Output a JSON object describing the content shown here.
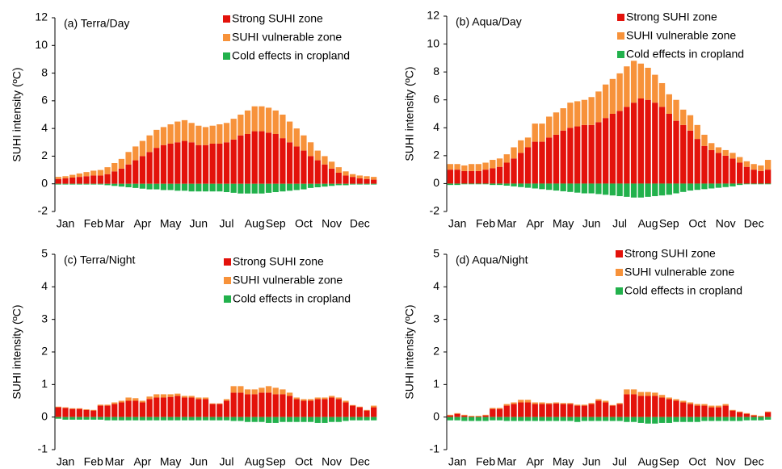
{
  "chart_data": [
    {
      "type": "bar",
      "stacked": true,
      "title": "(a) Terra/Day",
      "ylabel": "SUHI intensity (ºC)",
      "categories": [
        null,
        "Jan",
        null,
        null,
        null,
        "Feb",
        null,
        null,
        "Mar",
        null,
        null,
        null,
        "Apr",
        null,
        null,
        null,
        "May",
        null,
        null,
        null,
        "Jun",
        null,
        null,
        null,
        "Jul",
        null,
        null,
        null,
        "Aug",
        null,
        null,
        "Sep",
        null,
        null,
        null,
        "Oct",
        null,
        null,
        null,
        "Nov",
        null,
        null,
        null,
        "Dec",
        null,
        null
      ],
      "ylim": [
        -2,
        12
      ],
      "yticks": [
        -2,
        0,
        2,
        4,
        6,
        8,
        10,
        12
      ],
      "series": [
        {
          "name": "Strong SUHI zone",
          "color": "#e3120b",
          "values": [
            0.35,
            0.4,
            0.45,
            0.5,
            0.55,
            0.6,
            0.6,
            0.7,
            0.9,
            1.1,
            1.4,
            1.7,
            2.0,
            2.3,
            2.6,
            2.8,
            2.9,
            3.0,
            3.1,
            3.0,
            2.8,
            2.8,
            2.9,
            2.9,
            3.0,
            3.2,
            3.5,
            3.6,
            3.8,
            3.8,
            3.7,
            3.6,
            3.3,
            3.0,
            2.7,
            2.4,
            2.0,
            1.7,
            1.4,
            1.1,
            0.8,
            0.6,
            0.5,
            0.4,
            0.35,
            0.3
          ]
        },
        {
          "name": "SUHI vulnerable zone",
          "color": "#f7923a",
          "values": [
            0.15,
            0.15,
            0.2,
            0.25,
            0.3,
            0.35,
            0.4,
            0.5,
            0.6,
            0.7,
            0.9,
            1.0,
            1.1,
            1.2,
            1.3,
            1.3,
            1.4,
            1.5,
            1.5,
            1.4,
            1.4,
            1.3,
            1.3,
            1.4,
            1.4,
            1.5,
            1.5,
            1.7,
            1.8,
            1.8,
            1.8,
            1.7,
            1.7,
            1.5,
            1.3,
            1.1,
            1.0,
            0.7,
            0.6,
            0.5,
            0.4,
            0.3,
            0.2,
            0.2,
            0.2,
            0.2
          ]
        },
        {
          "name": "Cold effects in cropland",
          "color": "#22b14c",
          "values": [
            -0.05,
            -0.05,
            -0.05,
            -0.05,
            -0.05,
            -0.05,
            -0.05,
            -0.1,
            -0.15,
            -0.2,
            -0.25,
            -0.3,
            -0.35,
            -0.4,
            -0.4,
            -0.45,
            -0.45,
            -0.5,
            -0.5,
            -0.55,
            -0.55,
            -0.55,
            -0.55,
            -0.55,
            -0.6,
            -0.65,
            -0.7,
            -0.7,
            -0.7,
            -0.7,
            -0.65,
            -0.6,
            -0.55,
            -0.5,
            -0.45,
            -0.4,
            -0.3,
            -0.25,
            -0.2,
            -0.15,
            -0.1,
            -0.1,
            -0.05,
            -0.05,
            -0.05,
            -0.05
          ]
        }
      ]
    },
    {
      "type": "bar",
      "stacked": true,
      "title": "(b) Aqua/Day",
      "ylabel": "SUHI intensity (ºC)",
      "categories": [
        null,
        "Jan",
        null,
        null,
        null,
        "Feb",
        null,
        null,
        "Mar",
        null,
        null,
        null,
        "Apr",
        null,
        null,
        null,
        "May",
        null,
        null,
        null,
        "Jun",
        null,
        null,
        null,
        "Jul",
        null,
        null,
        null,
        "Aug",
        null,
        null,
        "Sep",
        null,
        null,
        null,
        "Oct",
        null,
        null,
        null,
        "Nov",
        null,
        null,
        null,
        "Dec",
        null,
        null
      ],
      "ylim": [
        -2,
        12
      ],
      "yticks": [
        -2,
        0,
        2,
        4,
        6,
        8,
        10,
        12
      ],
      "series": [
        {
          "name": "Strong SUHI zone",
          "color": "#e3120b",
          "values": [
            1.0,
            1.0,
            0.9,
            0.9,
            0.9,
            1.0,
            1.1,
            1.2,
            1.5,
            1.8,
            2.2,
            2.6,
            3.0,
            3.0,
            3.3,
            3.5,
            3.8,
            4.0,
            4.1,
            4.2,
            4.2,
            4.4,
            4.7,
            5.0,
            5.2,
            5.5,
            5.8,
            6.1,
            6.0,
            5.8,
            5.5,
            5.0,
            4.5,
            4.2,
            3.8,
            3.2,
            2.7,
            2.4,
            2.2,
            2.0,
            1.8,
            1.5,
            1.2,
            1.0,
            0.9,
            1.0
          ]
        },
        {
          "name": "SUHI vulnerable zone",
          "color": "#f7923a",
          "values": [
            0.4,
            0.4,
            0.4,
            0.5,
            0.5,
            0.5,
            0.6,
            0.6,
            0.6,
            0.8,
            0.9,
            0.7,
            1.3,
            1.3,
            1.5,
            1.6,
            1.6,
            1.8,
            1.8,
            1.8,
            2.0,
            2.2,
            2.4,
            2.5,
            2.7,
            2.9,
            3.0,
            2.5,
            2.3,
            2.0,
            1.7,
            1.4,
            1.5,
            1.1,
            1.1,
            1.0,
            0.8,
            0.5,
            0.4,
            0.4,
            0.4,
            0.4,
            0.4,
            0.4,
            0.4,
            0.7
          ]
        },
        {
          "name": "Cold effects in cropland",
          "color": "#22b14c",
          "values": [
            -0.1,
            -0.1,
            -0.05,
            -0.05,
            -0.05,
            -0.05,
            -0.1,
            -0.1,
            -0.15,
            -0.2,
            -0.25,
            -0.3,
            -0.35,
            -0.4,
            -0.45,
            -0.5,
            -0.55,
            -0.6,
            -0.65,
            -0.7,
            -0.7,
            -0.75,
            -0.8,
            -0.85,
            -0.9,
            -0.95,
            -1.0,
            -1.0,
            -0.95,
            -0.9,
            -0.85,
            -0.8,
            -0.7,
            -0.6,
            -0.5,
            -0.45,
            -0.4,
            -0.35,
            -0.3,
            -0.25,
            -0.2,
            -0.1,
            -0.05,
            -0.05,
            -0.05,
            -0.05
          ]
        }
      ]
    },
    {
      "type": "bar",
      "stacked": true,
      "title": "(c) Terra/Night",
      "ylabel": "SUHI intensity (ºC)",
      "categories": [
        null,
        "Jan",
        null,
        null,
        null,
        "Feb",
        null,
        null,
        "Mar",
        null,
        null,
        null,
        "Apr",
        null,
        null,
        null,
        "May",
        null,
        null,
        null,
        "Jun",
        null,
        null,
        null,
        "Jul",
        null,
        null,
        null,
        "Aug",
        null,
        null,
        "Sep",
        null,
        null,
        null,
        "Oct",
        null,
        null,
        null,
        "Nov",
        null,
        null,
        null,
        "Dec",
        null,
        null
      ],
      "ylim": [
        -1,
        5
      ],
      "yticks": [
        -1,
        0,
        1,
        2,
        3,
        4,
        5
      ],
      "series": [
        {
          "name": "Strong SUHI zone",
          "color": "#e3120b",
          "values": [
            0.3,
            0.28,
            0.25,
            0.25,
            0.22,
            0.2,
            0.35,
            0.35,
            0.4,
            0.45,
            0.5,
            0.5,
            0.45,
            0.55,
            0.6,
            0.6,
            0.62,
            0.65,
            0.6,
            0.6,
            0.55,
            0.55,
            0.4,
            0.4,
            0.5,
            0.75,
            0.75,
            0.7,
            0.7,
            0.75,
            0.75,
            0.7,
            0.7,
            0.65,
            0.55,
            0.5,
            0.5,
            0.55,
            0.55,
            0.6,
            0.55,
            0.45,
            0.35,
            0.3,
            0.2,
            0.3
          ]
        },
        {
          "name": "SUHI vulnerable zone",
          "color": "#f7923a",
          "values": [
            0.02,
            0.02,
            0.02,
            0.02,
            0.02,
            0.02,
            0.03,
            0.03,
            0.05,
            0.05,
            0.1,
            0.08,
            0.05,
            0.08,
            0.1,
            0.1,
            0.08,
            0.07,
            0.05,
            0.05,
            0.05,
            0.05,
            0.02,
            0.02,
            0.05,
            0.2,
            0.2,
            0.15,
            0.15,
            0.15,
            0.2,
            0.2,
            0.15,
            0.1,
            0.05,
            0.05,
            0.05,
            0.05,
            0.05,
            0.05,
            0.05,
            0.05,
            0.02,
            0.02,
            0.02,
            0.05
          ]
        },
        {
          "name": "Cold effects in cropland",
          "color": "#22b14c",
          "values": [
            -0.05,
            -0.08,
            -0.08,
            -0.08,
            -0.08,
            -0.08,
            -0.08,
            -0.1,
            -0.1,
            -0.1,
            -0.1,
            -0.1,
            -0.1,
            -0.1,
            -0.1,
            -0.1,
            -0.1,
            -0.1,
            -0.1,
            -0.1,
            -0.1,
            -0.1,
            -0.1,
            -0.1,
            -0.1,
            -0.12,
            -0.12,
            -0.15,
            -0.15,
            -0.15,
            -0.18,
            -0.18,
            -0.15,
            -0.15,
            -0.15,
            -0.15,
            -0.15,
            -0.18,
            -0.18,
            -0.15,
            -0.15,
            -0.12,
            -0.1,
            -0.1,
            -0.1,
            -0.1
          ]
        }
      ]
    },
    {
      "type": "bar",
      "stacked": true,
      "title": "(d) Aqua/Night",
      "ylabel": "SUHI intensity (ºC)",
      "categories": [
        null,
        "Jan",
        null,
        null,
        null,
        "Feb",
        null,
        null,
        "Mar",
        null,
        null,
        null,
        "Apr",
        null,
        null,
        null,
        "May",
        null,
        null,
        null,
        "Jun",
        null,
        null,
        null,
        "Jul",
        null,
        null,
        null,
        "Aug",
        null,
        null,
        "Sep",
        null,
        null,
        null,
        "Oct",
        null,
        null,
        null,
        "Nov",
        null,
        null,
        null,
        "Dec",
        null,
        null
      ],
      "ylim": [
        -1,
        5
      ],
      "yticks": [
        -1,
        0,
        1,
        2,
        3,
        4,
        5
      ],
      "series": [
        {
          "name": "Strong SUHI zone",
          "color": "#e3120b",
          "values": [
            0.05,
            0.1,
            0.05,
            0.02,
            0.02,
            0.05,
            0.25,
            0.25,
            0.35,
            0.4,
            0.45,
            0.45,
            0.4,
            0.4,
            0.4,
            0.42,
            0.4,
            0.4,
            0.35,
            0.35,
            0.4,
            0.5,
            0.45,
            0.35,
            0.4,
            0.7,
            0.7,
            0.65,
            0.65,
            0.65,
            0.6,
            0.55,
            0.5,
            0.45,
            0.4,
            0.35,
            0.35,
            0.3,
            0.3,
            0.35,
            0.2,
            0.15,
            0.1,
            0.05,
            0.02,
            0.15
          ]
        },
        {
          "name": "SUHI vulnerable zone",
          "color": "#f7923a",
          "values": [
            0.02,
            0.02,
            0.02,
            0.02,
            0.02,
            0.02,
            0.03,
            0.03,
            0.05,
            0.05,
            0.08,
            0.08,
            0.05,
            0.05,
            0.03,
            0.03,
            0.03,
            0.03,
            0.03,
            0.03,
            0.03,
            0.05,
            0.05,
            0.02,
            0.03,
            0.15,
            0.15,
            0.12,
            0.12,
            0.1,
            0.08,
            0.05,
            0.05,
            0.05,
            0.05,
            0.05,
            0.05,
            0.05,
            0.05,
            0.05,
            0.02,
            0.02,
            0.02,
            0.02,
            0.02,
            0.02
          ]
        },
        {
          "name": "Cold effects in cropland",
          "color": "#22b14c",
          "values": [
            -0.1,
            -0.1,
            -0.12,
            -0.12,
            -0.12,
            -0.12,
            -0.1,
            -0.1,
            -0.12,
            -0.12,
            -0.12,
            -0.12,
            -0.12,
            -0.12,
            -0.12,
            -0.12,
            -0.12,
            -0.12,
            -0.15,
            -0.12,
            -0.12,
            -0.12,
            -0.12,
            -0.12,
            -0.12,
            -0.15,
            -0.15,
            -0.18,
            -0.2,
            -0.2,
            -0.18,
            -0.18,
            -0.15,
            -0.15,
            -0.15,
            -0.15,
            -0.12,
            -0.12,
            -0.12,
            -0.12,
            -0.12,
            -0.12,
            -0.1,
            -0.1,
            -0.1,
            -0.08
          ]
        }
      ]
    }
  ]
}
